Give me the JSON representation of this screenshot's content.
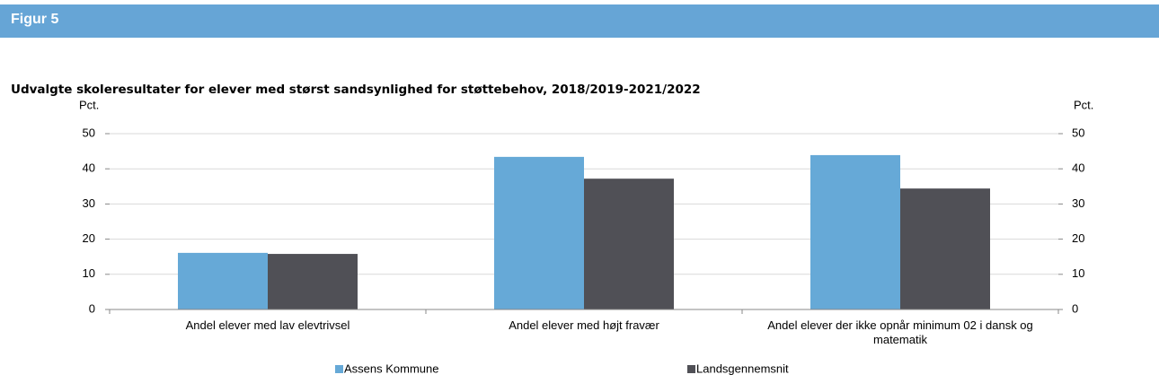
{
  "header": {
    "title": "Figur 5"
  },
  "chart_data": {
    "type": "bar",
    "title": "Udvalgte skoleresultater for elever med størst sandsynlighed for støttebehov, 2018/2019-2021/2022",
    "ylabel": "Pct.",
    "y2label": "Pct.",
    "categories": [
      "Andel elever med lav elevtrivsel",
      "Andel elever med højt fravær",
      "Andel elever der ikke opnår minimum 02 i dansk og matematik"
    ],
    "series": [
      {
        "name": "Assens Kommune",
        "color": "#66a9d7",
        "values": [
          16.1,
          43.4,
          43.9
        ]
      },
      {
        "name": "Landsgennemsnit",
        "color": "#505056",
        "values": [
          15.8,
          37.2,
          34.4
        ]
      }
    ],
    "ylim": [
      0,
      50
    ],
    "yticks": [
      0,
      10,
      20,
      30,
      40,
      50
    ],
    "y2lim": [
      0,
      50
    ],
    "y2ticks": [
      0,
      10,
      20,
      30,
      40,
      50
    ],
    "grid": true,
    "legend": "bottom"
  }
}
